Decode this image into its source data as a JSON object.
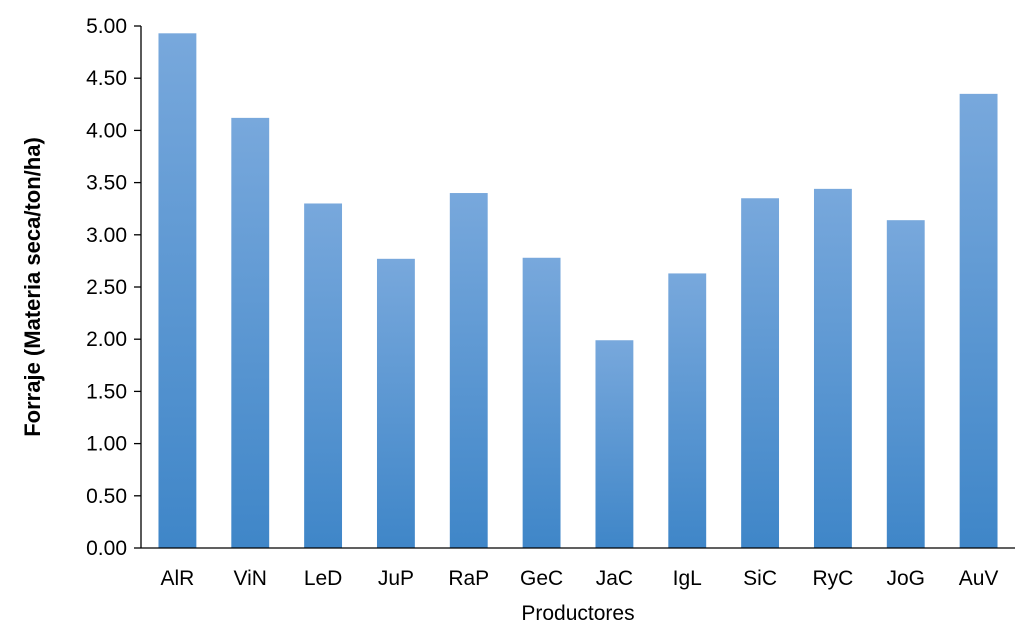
{
  "chart_data": {
    "type": "bar",
    "title": "",
    "xlabel": "Productores",
    "ylabel": "Forraje (Materia seca/ton/ha)",
    "categories": [
      "AlR",
      "ViN",
      "LeD",
      "JuP",
      "RaP",
      "GeC",
      "JaC",
      "IgL",
      "SiC",
      "RyC",
      "JoG",
      "AuV"
    ],
    "values": [
      4.93,
      4.12,
      3.3,
      2.77,
      3.4,
      2.78,
      1.99,
      2.63,
      3.35,
      3.44,
      3.14,
      4.35
    ],
    "ylim": [
      0,
      5
    ],
    "yticks": [
      "0.00",
      "0.50",
      "1.00",
      "1.50",
      "2.00",
      "2.50",
      "3.00",
      "3.50",
      "4.00",
      "4.50",
      "5.00"
    ],
    "grid": false,
    "legend": "none",
    "colors": {
      "bar_top": "#78A8DC",
      "bar_bottom": "#3F86C8",
      "axis": "#000000"
    }
  }
}
